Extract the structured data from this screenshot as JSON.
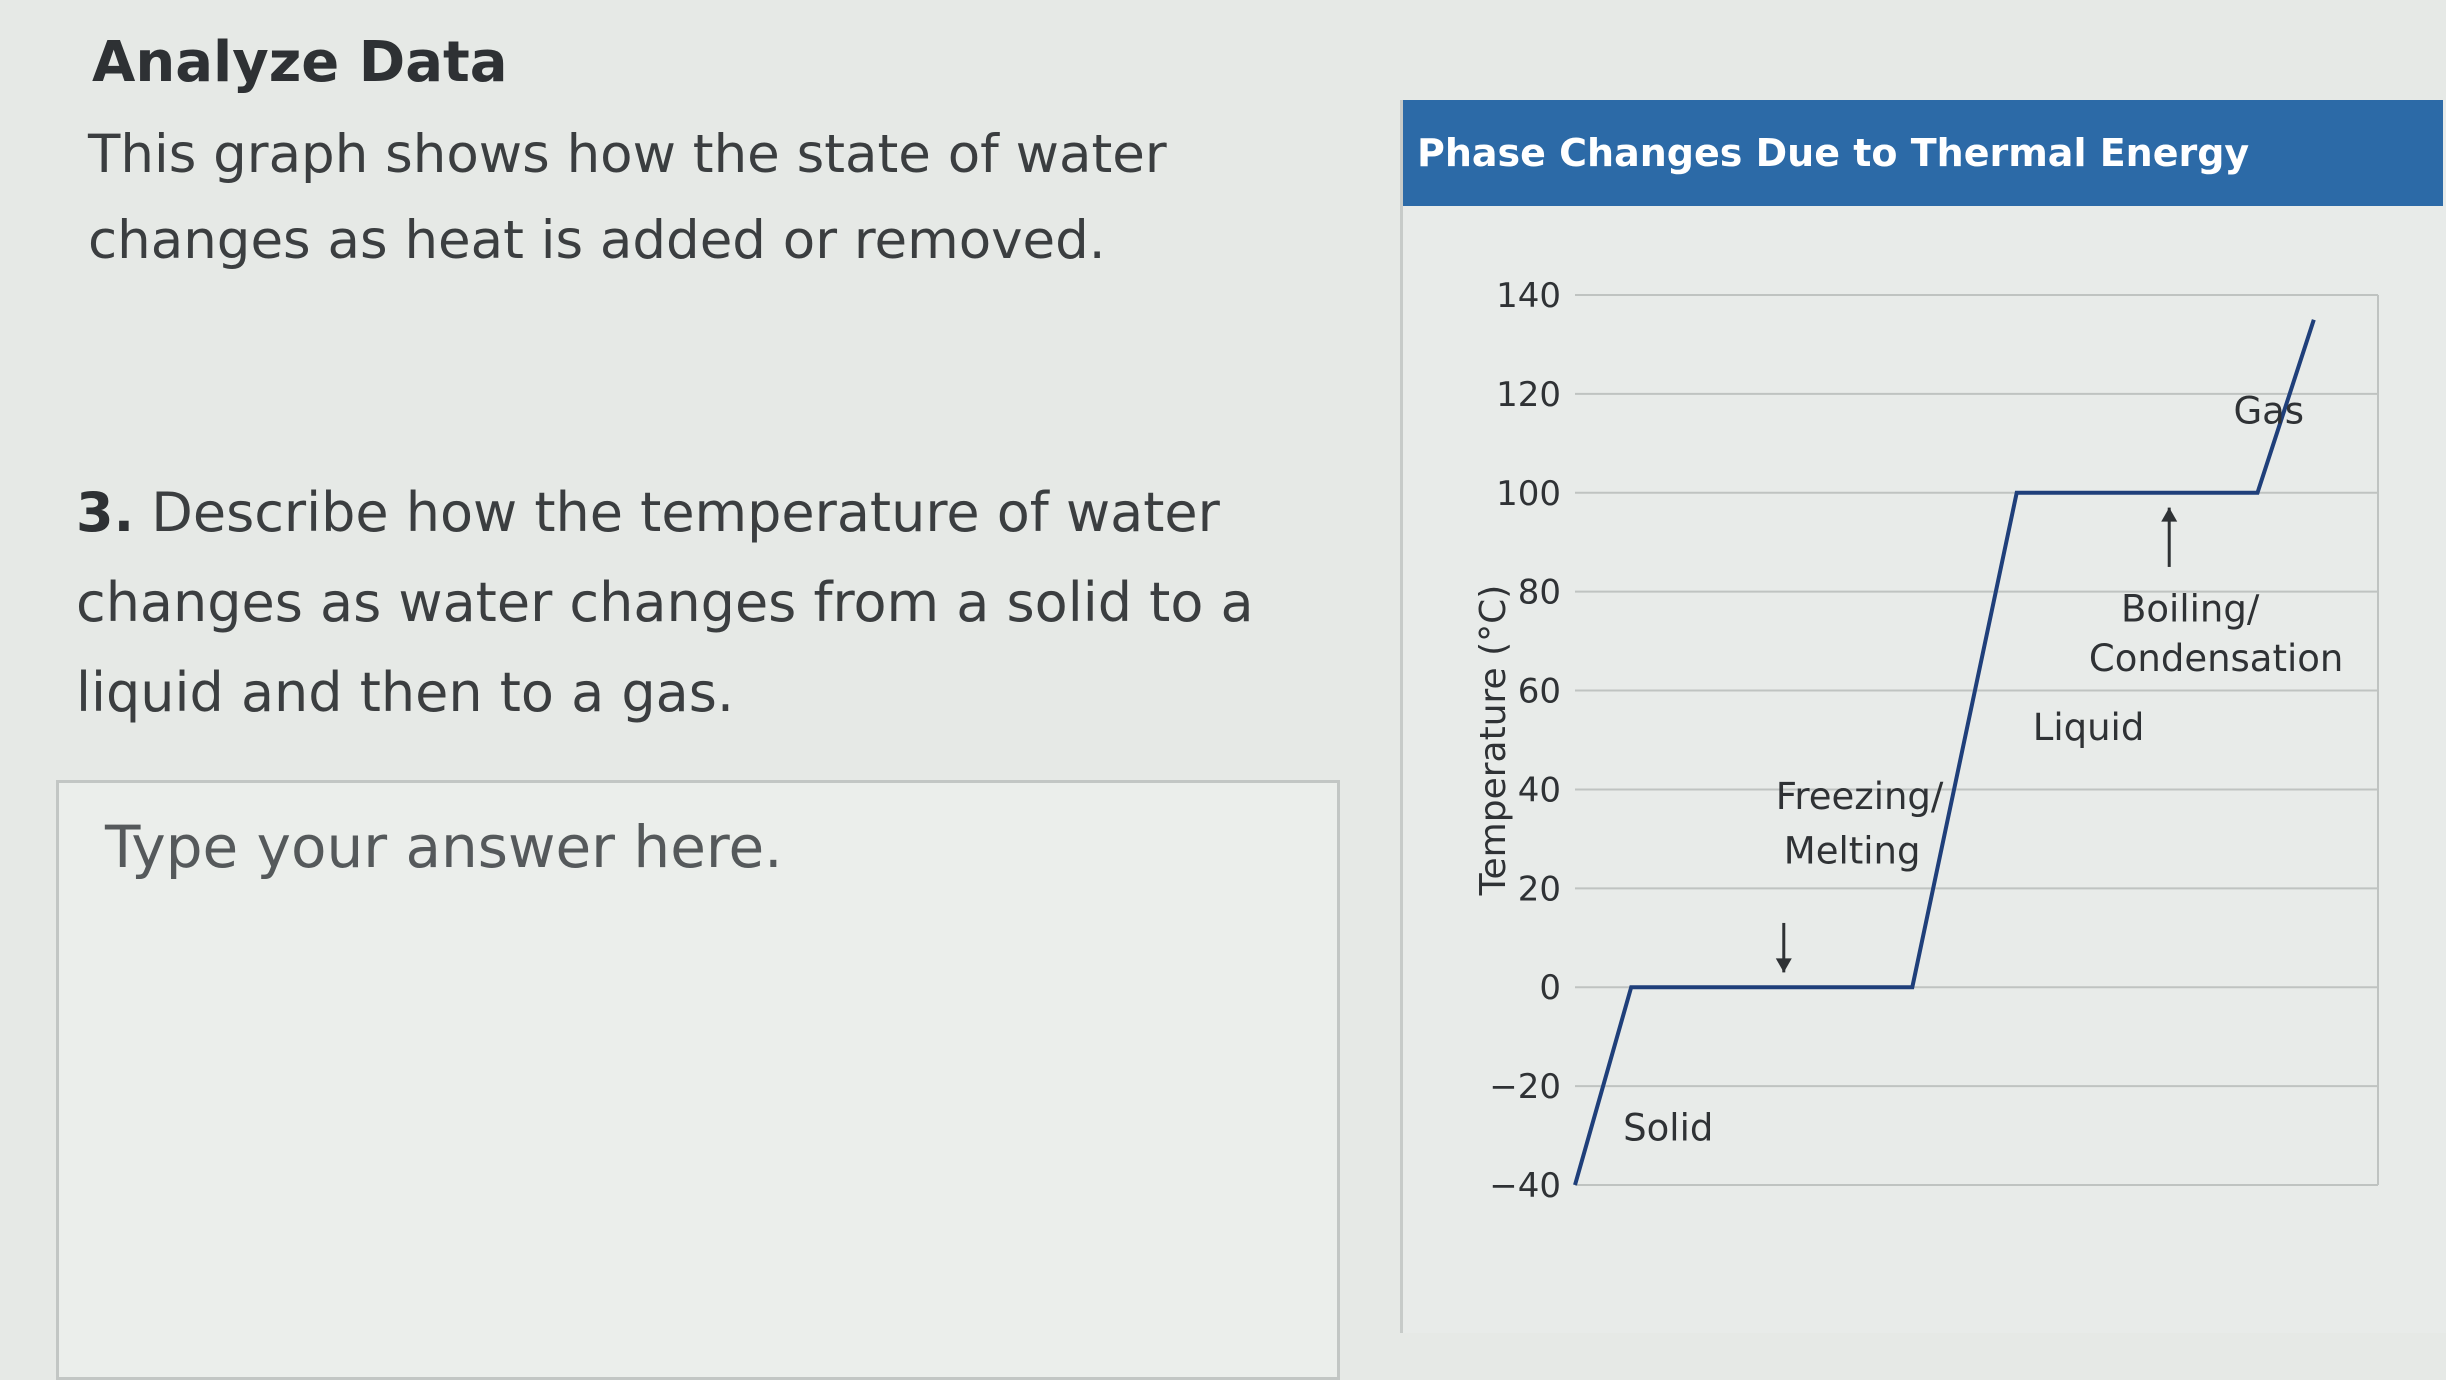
{
  "left": {
    "section_title": "Analyze Data",
    "intro": "This graph shows how the state of water changes as heat is added or removed.",
    "question_number": "3.",
    "question_text": "Describe how the temperature of water changes as water changes from a solid to a liquid and then to a gas.",
    "answer_placeholder": "Type your answer here."
  },
  "chart_data": {
    "type": "line",
    "title": "Phase Changes Due to Thermal Energy",
    "ylabel": "Temperature (°C)",
    "xlabel": "",
    "ylim": [
      -40,
      140
    ],
    "yticks": [
      140,
      120,
      100,
      80,
      60,
      40,
      20,
      0,
      -20,
      -40
    ],
    "ytick_labels": [
      "140",
      "120",
      "100",
      "80",
      "60",
      "40",
      "20",
      "0",
      "−20",
      "−40"
    ],
    "grid": true,
    "line_color": "#1f3f7a",
    "header_color": "#2c6aa7",
    "series": [
      {
        "x": [
          0,
          0.07,
          0.42,
          0.55,
          0.85,
          0.92
        ],
        "y": [
          -40,
          0,
          0,
          100,
          100,
          135
        ]
      }
    ],
    "annotations": [
      {
        "text": "Solid",
        "x": 0.06,
        "y": -31
      },
      {
        "text": "Freezing/",
        "x": 0.25,
        "y": 36
      },
      {
        "text": "Melting",
        "x": 0.26,
        "y": 25
      },
      {
        "text": "Liquid",
        "x": 0.57,
        "y": 50
      },
      {
        "text": "Boiling/",
        "x": 0.68,
        "y": 74
      },
      {
        "text": "Condensation",
        "x": 0.64,
        "y": 64
      },
      {
        "text": "Gas",
        "x": 0.82,
        "y": 114
      }
    ],
    "arrows": [
      {
        "x": 0.26,
        "y_from": 13,
        "y_to": 3
      },
      {
        "x": 0.74,
        "y_from": 85,
        "y_to": 97
      }
    ]
  }
}
